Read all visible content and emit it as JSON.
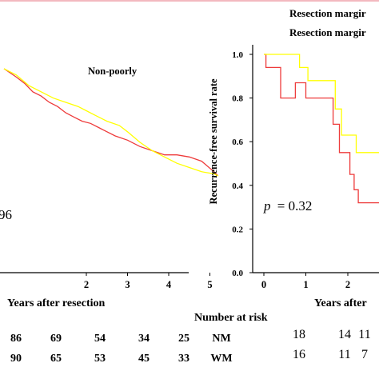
{
  "colors": {
    "top_rule": "#f3b8bf",
    "line_nm": "#ee3b3b",
    "line_wm": "#ffff00",
    "axis": "#000000"
  },
  "legend": {
    "entries": [
      "Resection margir",
      "Resection margir"
    ]
  },
  "chart_data": [
    {
      "type": "line",
      "title": "Non-poorly",
      "xlabel": "Years after resection",
      "ylabel": "",
      "xlim": [
        0,
        5.2
      ],
      "ylim": [
        0,
        1
      ],
      "x_ticks": [
        "2",
        "3",
        "4",
        "5"
      ],
      "p_value_text": "96",
      "series": [
        {
          "color": "#ee3b3b",
          "x": [
            0,
            0.3,
            0.5,
            0.7,
            0.9,
            1.1,
            1.3,
            1.5,
            1.7,
            1.9,
            2.1,
            2.3,
            2.5,
            2.7,
            3.0,
            3.3,
            3.6,
            3.9,
            4.2,
            4.5,
            4.8,
            5.1,
            5.2
          ],
          "y": [
            0.97,
            0.93,
            0.9,
            0.86,
            0.84,
            0.81,
            0.79,
            0.76,
            0.74,
            0.72,
            0.71,
            0.69,
            0.67,
            0.65,
            0.63,
            0.6,
            0.58,
            0.56,
            0.56,
            0.55,
            0.53,
            0.48,
            0.46
          ]
        },
        {
          "color": "#ffff00",
          "x": [
            0,
            0.3,
            0.6,
            0.9,
            1.2,
            1.5,
            1.8,
            2.0,
            2.2,
            2.5,
            2.8,
            3.0,
            3.3,
            3.6,
            3.9,
            4.2,
            4.5,
            4.8,
            5.1,
            5.2
          ],
          "y": [
            0.97,
            0.94,
            0.89,
            0.86,
            0.83,
            0.81,
            0.79,
            0.77,
            0.75,
            0.72,
            0.7,
            0.67,
            0.62,
            0.58,
            0.55,
            0.52,
            0.5,
            0.48,
            0.47,
            0.46
          ]
        }
      ],
      "risk_table": {
        "rows": [
          [
            "86",
            "69",
            "54",
            "34",
            "25"
          ],
          [
            "90",
            "65",
            "53",
            "45",
            "33"
          ]
        ]
      }
    },
    {
      "type": "line",
      "title": "",
      "xlabel": "Years after",
      "ylabel": "Recurrence-free survival rate",
      "xlim": [
        -0.2,
        2.8
      ],
      "ylim": [
        0,
        1.05
      ],
      "x_ticks": [
        "0",
        "1",
        "2"
      ],
      "y_ticks": [
        "0.0",
        "0.2",
        "0.4",
        "0.6",
        "0.8",
        "1.0"
      ],
      "p_value_text": "= 0.32",
      "p_symbol": "p",
      "series": [
        {
          "name": "NM",
          "color": "#ee3b3b",
          "x": [
            0,
            0.05,
            0.05,
            0.4,
            0.4,
            0.75,
            0.75,
            1.0,
            1.0,
            1.65,
            1.65,
            1.8,
            1.8,
            2.05,
            2.05,
            2.15,
            2.15,
            2.25,
            2.25,
            2.8
          ],
          "y": [
            1.0,
            1.0,
            0.94,
            0.94,
            0.8,
            0.8,
            0.87,
            0.87,
            0.8,
            0.8,
            0.68,
            0.68,
            0.55,
            0.55,
            0.45,
            0.45,
            0.38,
            0.38,
            0.32,
            0.32
          ]
        },
        {
          "name": "WM",
          "color": "#ffff00",
          "x": [
            0,
            0.85,
            0.85,
            1.05,
            1.05,
            1.7,
            1.7,
            1.85,
            1.85,
            2.2,
            2.2,
            2.8
          ],
          "y": [
            1.0,
            1.0,
            0.94,
            0.94,
            0.88,
            0.88,
            0.75,
            0.75,
            0.63,
            0.63,
            0.55,
            0.55
          ]
        }
      ],
      "risk_table": {
        "title": "Number at risk",
        "row_labels": [
          "NM",
          "WM"
        ],
        "rows": [
          [
            "18",
            "14",
            "11"
          ],
          [
            "16",
            "11",
            "7"
          ]
        ]
      }
    }
  ]
}
